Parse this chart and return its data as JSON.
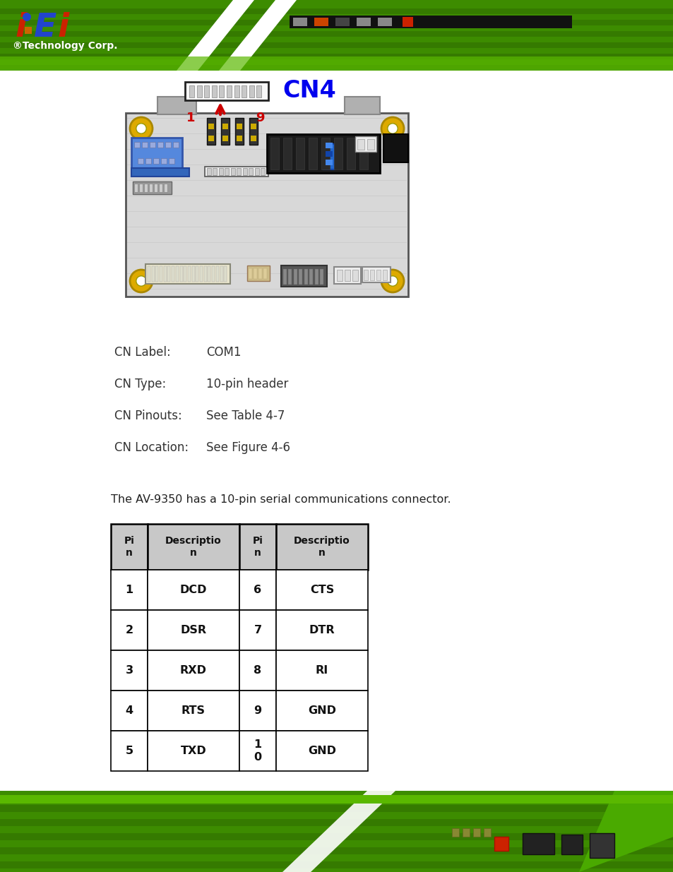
{
  "page_bg": "#ffffff",
  "cn_label": "CN4",
  "cn_label_color": "#0000ee",
  "pin_label_1": "1",
  "pin_label_9": "9",
  "pin_label_color": "#cc0000",
  "cn_info": [
    [
      "CN Label:",
      "COM1"
    ],
    [
      "CN Type:",
      "10-pin header"
    ],
    [
      "CN Pinouts:",
      "See Table 4-7"
    ],
    [
      "CN Location:",
      "See Figure 4-6"
    ]
  ],
  "intro_text": "The AV-9350 has a 10-pin serial communications connector.",
  "table_headers": [
    "Pi\nn",
    "Descriptio\nn",
    "Pi\nn",
    "Descriptio\nn"
  ],
  "table_rows": [
    [
      "1",
      "DCD",
      "6",
      "CTS"
    ],
    [
      "2",
      "DSR",
      "7",
      "DTR"
    ],
    [
      "3",
      "RXD",
      "8",
      "RI"
    ],
    [
      "4",
      "RTS",
      "9",
      "GND"
    ],
    [
      "5",
      "TXD",
      "1\n0",
      "GND"
    ]
  ],
  "table_header_bg": "#c8c8c8",
  "table_border_color": "#000000",
  "header_green": "#4aaa00",
  "footer_green": "#4aaa00",
  "board_fill": "#dcdcdc",
  "board_edge": "#666666",
  "vga_blue": "#4477cc",
  "corner_yellow": "#ddaa00",
  "logo_i_color": "#cc2200",
  "logo_e_color": "#0000cc",
  "logo_dot_color": "#0000cc"
}
